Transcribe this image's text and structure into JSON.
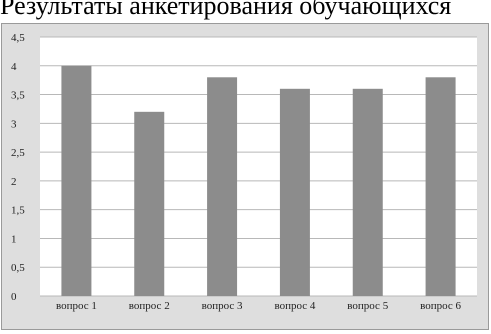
{
  "title": "Результаты анкетирования обучающихся",
  "chart_data": {
    "type": "bar",
    "categories": [
      "вопрос 1",
      "вопрос 2",
      "вопрос 3",
      "вопрос 4",
      "вопрос 5",
      "вопрос 6"
    ],
    "values": [
      4.0,
      3.2,
      3.8,
      3.6,
      3.6,
      3.8
    ],
    "ylim": [
      0,
      4.5
    ],
    "yticks": [
      "0",
      "0,5",
      "1",
      "1,5",
      "2",
      "2,5",
      "3",
      "3,5",
      "4",
      "4,5"
    ],
    "ytick_values": [
      0,
      0.5,
      1,
      1.5,
      2,
      2.5,
      3,
      3.5,
      4,
      4.5
    ],
    "grid": true,
    "legend": "none",
    "colors": {
      "bar": "#8c8c8c",
      "plot_bg": "#ffffff",
      "frame_bg": "#dedede",
      "grid": "#b8b8b8"
    }
  }
}
